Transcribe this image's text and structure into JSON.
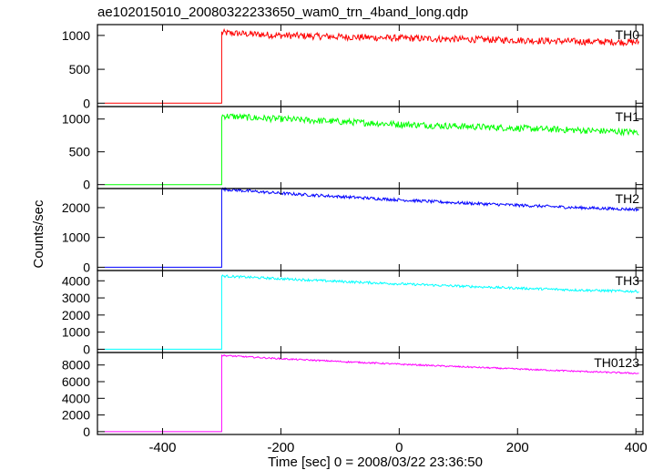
{
  "chart_data": {
    "type": "line",
    "title": "ae102015010_20080322233650_wam0_trn_4band_long.qdp",
    "xlabel": "Time [sec] 0 = 2008/03/22 23:36:50",
    "ylabel": "Counts/sec",
    "xlim": [
      -510,
      412
    ],
    "x_ticks": [
      -400,
      -200,
      0,
      200,
      400
    ],
    "step_time": -300,
    "panels": [
      {
        "name": "TH0",
        "color": "#ff0000",
        "ylim": [
          -50,
          1160
        ],
        "y_ticks": [
          0,
          500,
          1000
        ],
        "baseline": 0,
        "x": [
          -300,
          -250,
          -200,
          -100,
          0,
          100,
          200,
          300,
          400
        ],
        "values": [
          1040,
          1020,
          1000,
          980,
          960,
          945,
          930,
          910,
          900
        ],
        "noise": 50
      },
      {
        "name": "TH1",
        "color": "#00ff00",
        "ylim": [
          -60,
          1190
        ],
        "y_ticks": [
          0,
          500,
          1000
        ],
        "baseline": 0,
        "x": [
          -300,
          -250,
          -200,
          -100,
          0,
          100,
          200,
          300,
          400
        ],
        "values": [
          1050,
          1020,
          1000,
          960,
          920,
          890,
          860,
          830,
          800
        ],
        "noise": 50
      },
      {
        "name": "TH2",
        "color": "#0000ff",
        "ylim": [
          -110,
          2640
        ],
        "y_ticks": [
          0,
          1000,
          2000
        ],
        "baseline": 0,
        "x": [
          -300,
          -250,
          -200,
          -100,
          0,
          100,
          200,
          300,
          400
        ],
        "values": [
          2620,
          2550,
          2480,
          2370,
          2260,
          2160,
          2080,
          2000,
          1940
        ],
        "noise": 50
      },
      {
        "name": "TH3",
        "color": "#00ffff",
        "ylim": [
          -190,
          4600
        ],
        "y_ticks": [
          0,
          1000,
          2000,
          3000,
          4000
        ],
        "baseline": 0,
        "x": [
          -300,
          -250,
          -200,
          -100,
          0,
          100,
          200,
          300,
          400
        ],
        "values": [
          4280,
          4200,
          4120,
          3960,
          3820,
          3690,
          3570,
          3460,
          3380
        ],
        "noise": 70
      },
      {
        "name": "TH0123",
        "color": "#ff00ff",
        "ylim": [
          -340,
          9500
        ],
        "y_ticks": [
          0,
          2000,
          4000,
          6000,
          8000
        ],
        "baseline": 0,
        "x": [
          -300,
          -250,
          -200,
          -100,
          0,
          100,
          200,
          300,
          400
        ],
        "values": [
          9150,
          8950,
          8750,
          8420,
          8100,
          7800,
          7520,
          7250,
          7000
        ],
        "noise": 90
      }
    ]
  }
}
